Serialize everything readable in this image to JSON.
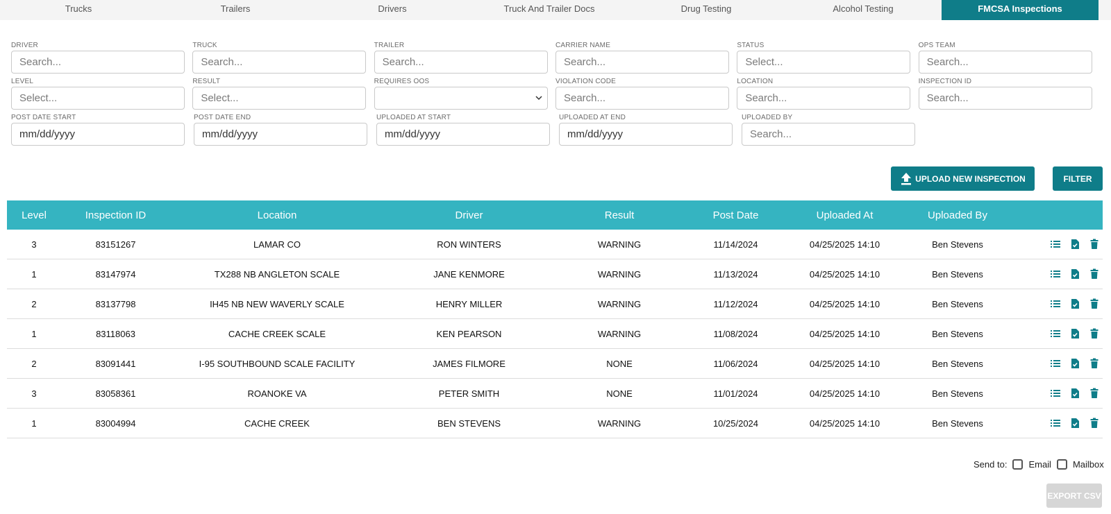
{
  "tabs": [
    {
      "label": "Trucks"
    },
    {
      "label": "Trailers"
    },
    {
      "label": "Drivers"
    },
    {
      "label": "Truck And Trailer Docs"
    },
    {
      "label": "Drug Testing"
    },
    {
      "label": "Alcohol Testing"
    },
    {
      "label": "FMCSA Inspections",
      "active": true
    }
  ],
  "filters": {
    "driver": {
      "label": "DRIVER",
      "placeholder": "Search..."
    },
    "truck": {
      "label": "TRUCK",
      "placeholder": "Search..."
    },
    "trailer": {
      "label": "TRAILER",
      "placeholder": "Search..."
    },
    "carrier_name": {
      "label": "CARRIER NAME",
      "placeholder": "Search..."
    },
    "status": {
      "label": "STATUS",
      "placeholder": "Select..."
    },
    "ops_team": {
      "label": "OPS TEAM",
      "placeholder": "Search..."
    },
    "level": {
      "label": "LEVEL",
      "placeholder": "Select..."
    },
    "result": {
      "label": "RESULT",
      "placeholder": "Select..."
    },
    "requires_oos": {
      "label": "REQUIRES OOS",
      "value": ""
    },
    "violation_code": {
      "label": "VIOLATION CODE",
      "placeholder": "Search..."
    },
    "location": {
      "label": "LOCATION",
      "placeholder": "Search..."
    },
    "inspection_id": {
      "label": "INSPECTION ID",
      "placeholder": "Search..."
    },
    "post_date_start": {
      "label": "POST DATE START",
      "placeholder": "mm/dd/yyyy"
    },
    "post_date_end": {
      "label": "POST DATE END",
      "placeholder": "mm/dd/yyyy"
    },
    "uploaded_at_start": {
      "label": "UPLOADED AT START",
      "placeholder": "mm/dd/yyyy"
    },
    "uploaded_at_end": {
      "label": "UPLOADED AT END",
      "placeholder": "mm/dd/yyyy"
    },
    "uploaded_by": {
      "label": "UPLOADED BY",
      "placeholder": "Search..."
    }
  },
  "actions": {
    "upload_label": "UPLOAD NEW INSPECTION",
    "filter_label": "FILTER"
  },
  "table": {
    "columns": [
      "Level",
      "Inspection ID",
      "Location",
      "Driver",
      "Result",
      "Post Date",
      "Uploaded At",
      "Uploaded By"
    ],
    "rows": [
      {
        "level": "3",
        "id": "83151267",
        "location": "LAMAR CO",
        "driver": "RON WINTERS",
        "result": "WARNING",
        "post_date": "11/14/2024",
        "uploaded_at": "04/25/2025 14:10",
        "uploaded_by": "Ben Stevens"
      },
      {
        "level": "1",
        "id": "83147974",
        "location": "TX288 NB ANGLETON SCALE",
        "driver": "JANE KENMORE",
        "result": "WARNING",
        "post_date": "11/13/2024",
        "uploaded_at": "04/25/2025 14:10",
        "uploaded_by": "Ben Stevens"
      },
      {
        "level": "2",
        "id": "83137798",
        "location": "IH45 NB NEW WAVERLY SCALE",
        "driver": "HENRY MILLER",
        "result": "WARNING",
        "post_date": "11/12/2024",
        "uploaded_at": "04/25/2025 14:10",
        "uploaded_by": "Ben Stevens"
      },
      {
        "level": "1",
        "id": "83118063",
        "location": "CACHE CREEK SCALE",
        "driver": "KEN PEARSON",
        "result": "WARNING",
        "post_date": "11/08/2024",
        "uploaded_at": "04/25/2025 14:10",
        "uploaded_by": "Ben Stevens"
      },
      {
        "level": "2",
        "id": "83091441",
        "location": "I-95 SOUTHBOUND SCALE FACILITY",
        "driver": "JAMES FILMORE",
        "result": "NONE",
        "post_date": "11/06/2024",
        "uploaded_at": "04/25/2025 14:10",
        "uploaded_by": "Ben Stevens"
      },
      {
        "level": "3",
        "id": "83058361",
        "location": "ROANOKE VA",
        "driver": "PETER SMITH",
        "result": "NONE",
        "post_date": "11/01/2024",
        "uploaded_at": "04/25/2025 14:10",
        "uploaded_by": "Ben Stevens"
      },
      {
        "level": "1",
        "id": "83004994",
        "location": "CACHE CREEK",
        "driver": "BEN STEVENS",
        "result": "WARNING",
        "post_date": "10/25/2024",
        "uploaded_at": "04/25/2025 14:10",
        "uploaded_by": "Ben Stevens"
      }
    ],
    "row_actions": [
      "list-icon",
      "document-check-icon",
      "trash-icon"
    ]
  },
  "footer": {
    "send_to_label": "Send to:",
    "email_label": "Email",
    "mailbox_label": "Mailbox",
    "export_label": "EXPORT CSV"
  },
  "colors": {
    "accent": "#0f7d89",
    "table_header": "#35b4c1",
    "disabled": "#d6d6d6"
  }
}
